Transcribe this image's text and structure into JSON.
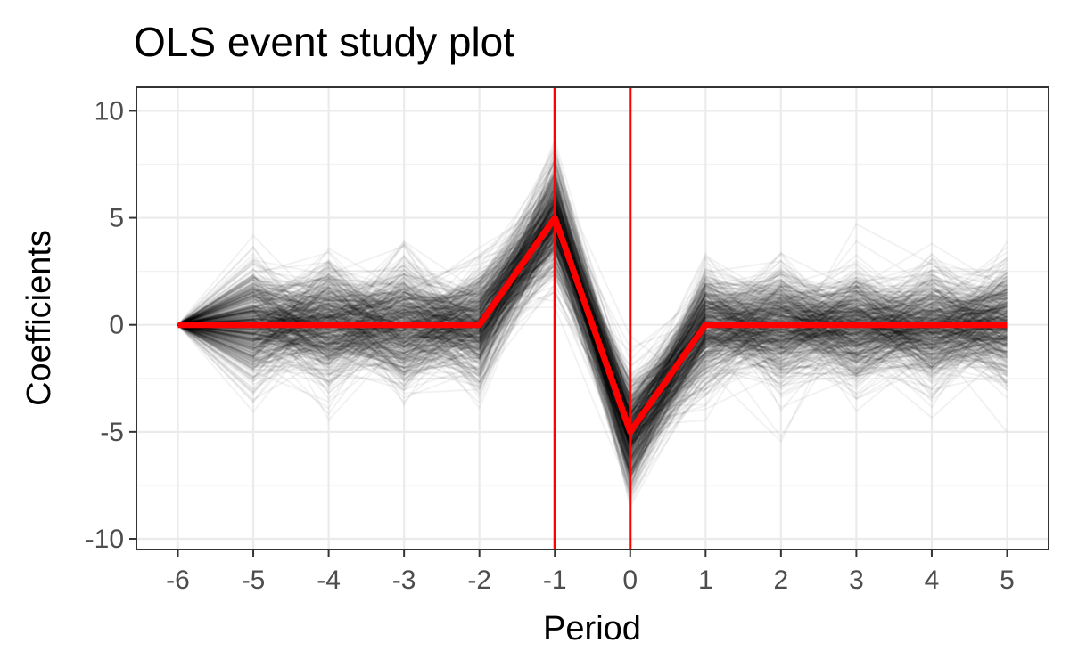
{
  "chart_data": {
    "type": "line",
    "title": "OLS event study plot",
    "xlabel": "Period",
    "ylabel": "Coefficients",
    "x": [
      -6,
      -5,
      -4,
      -3,
      -2,
      -1,
      0,
      1,
      2,
      3,
      4,
      5
    ],
    "x_ticks": [
      "-6",
      "-5",
      "-4",
      "-3",
      "-2",
      "-1",
      "0",
      "1",
      "2",
      "3",
      "4",
      "5"
    ],
    "y_ticks": [
      "-10",
      "-5",
      "0",
      "5",
      "10"
    ],
    "xlim": [
      -6.55,
      5.55
    ],
    "ylim": [
      -10.5,
      11.1
    ],
    "grid": true,
    "legend": "none",
    "series": [
      {
        "values": [
          0,
          0,
          0,
          0,
          0,
          5,
          -5,
          0,
          0,
          0,
          0,
          0
        ],
        "color": "#ff0000"
      }
    ],
    "simulated_draws": {
      "count": 600,
      "color": "#000000",
      "opacity": 0.05,
      "spread_sd": 1.3
    },
    "reference_lines": [
      {
        "axis": "x",
        "value": -1,
        "color": "#ff0000"
      },
      {
        "axis": "x",
        "value": 0,
        "color": "#ff0000"
      }
    ]
  }
}
